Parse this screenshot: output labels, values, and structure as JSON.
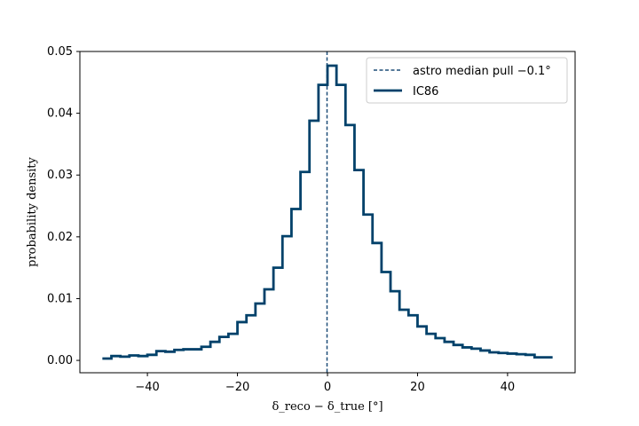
{
  "chart_data": {
    "type": "line",
    "title": "",
    "xlabel": "δ_reco − δ_true  [°]",
    "ylabel": "probability density",
    "xlim": [
      -55,
      55
    ],
    "ylim": [
      -0.002,
      0.05
    ],
    "xticks": [
      -40,
      -20,
      0,
      20,
      40
    ],
    "xtick_labels": [
      "−40",
      "−20",
      "0",
      "20",
      "40"
    ],
    "yticks": [
      0.0,
      0.01,
      0.02,
      0.03,
      0.04,
      0.05
    ],
    "ytick_labels": [
      "0.00",
      "0.01",
      "0.02",
      "0.03",
      "0.04",
      "0.05"
    ],
    "grid": false,
    "legend_position": "top-right",
    "median_line": {
      "label": "astro median pull −0.1°",
      "x": -0.1,
      "color": "#1f4e79",
      "style": "dashed"
    },
    "series": [
      {
        "name": "IC86",
        "color": "#00416a",
        "step": "histogram",
        "bin_edges": [
          -50,
          -48,
          -46,
          -44,
          -42,
          -40,
          -38,
          -36,
          -34,
          -32,
          -30,
          -28,
          -26,
          -24,
          -22,
          -20,
          -18,
          -16,
          -14,
          -12,
          -10,
          -8,
          -6,
          -4,
          -2,
          0,
          2,
          4,
          6,
          8,
          10,
          12,
          14,
          16,
          18,
          20,
          22,
          24,
          26,
          28,
          30,
          32,
          34,
          36,
          38,
          40,
          42,
          44,
          46,
          48,
          50
        ],
        "values": [
          0.0003,
          0.0007,
          0.0006,
          0.0008,
          0.0007,
          0.0009,
          0.0015,
          0.0014,
          0.0017,
          0.0018,
          0.0018,
          0.0022,
          0.003,
          0.0038,
          0.0043,
          0.0062,
          0.0073,
          0.0092,
          0.0115,
          0.015,
          0.0201,
          0.0245,
          0.0305,
          0.0388,
          0.0446,
          0.0477,
          0.0446,
          0.0381,
          0.0308,
          0.0236,
          0.019,
          0.0143,
          0.0112,
          0.0082,
          0.0073,
          0.0055,
          0.0043,
          0.0036,
          0.003,
          0.0025,
          0.0021,
          0.0019,
          0.0016,
          0.0013,
          0.0012,
          0.0011,
          0.001,
          0.0009,
          0.0005,
          0.0005
        ]
      }
    ]
  }
}
